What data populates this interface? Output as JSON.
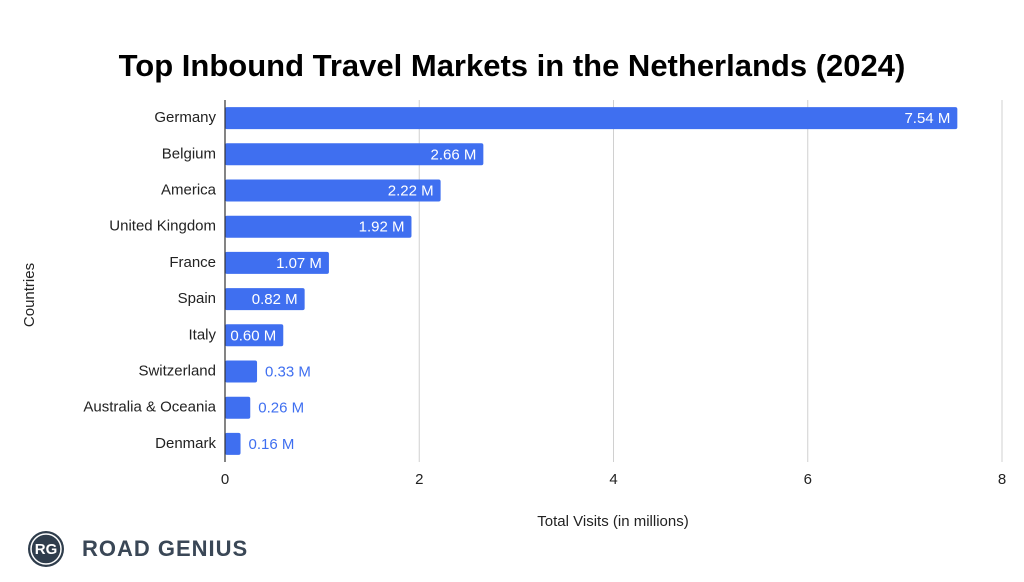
{
  "chart_data": {
    "type": "hbar",
    "title": "Top Inbound Travel Markets in the Netherlands (2024)",
    "x_label": "Total Visits (in millions)",
    "y_label": "Countries",
    "categories": [
      "Germany",
      "Belgium",
      "America",
      "United Kingdom",
      "France",
      "Spain",
      "Italy",
      "Switzerland",
      "Australia & Oceania",
      "Denmark"
    ],
    "values": [
      7.54,
      2.66,
      2.22,
      1.92,
      1.07,
      0.82,
      0.6,
      0.33,
      0.26,
      0.16
    ],
    "value_labels": [
      "7.54 M",
      "2.66 M",
      "2.22 M",
      "1.92 M",
      "1.07 M",
      "0.82 M",
      "0.60 M",
      "0.33 M",
      "0.26 M",
      "0.16 M"
    ],
    "color": "#3f6ff0",
    "xlim": [
      0,
      8
    ],
    "xticks": [
      0,
      2,
      4,
      6,
      8
    ],
    "grid": true
  },
  "branding": {
    "initials": "RG",
    "name": "ROAD GENIUS"
  }
}
